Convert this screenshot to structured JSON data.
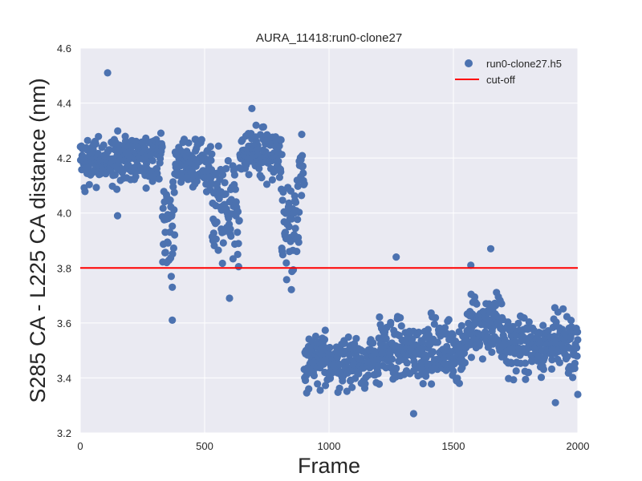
{
  "chart_data": {
    "type": "scatter",
    "title": "AURA_11418:run0-clone27",
    "xlabel": "Frame",
    "ylabel": "S285 CA - L225 CA distance (nm)",
    "xlim": [
      0,
      2000
    ],
    "ylim": [
      3.2,
      4.6
    ],
    "xticks": [
      "0",
      "500",
      "1000",
      "1500",
      "2000"
    ],
    "yticks": [
      "3.2",
      "3.4",
      "3.6",
      "3.8",
      "4.0",
      "4.2",
      "4.4",
      "4.6"
    ],
    "grid": true,
    "legend_position": "top-right",
    "series": [
      {
        "name": "run0-clone27.h5",
        "kind": "points",
        "color": "#4c72b0",
        "segments": [
          {
            "x_start": 0,
            "x_end": 330,
            "mean": 4.2,
            "spread": 0.1
          },
          {
            "x_start": 330,
            "x_end": 380,
            "mean": 3.95,
            "spread": 0.2
          },
          {
            "x_start": 380,
            "x_end": 530,
            "mean": 4.18,
            "spread": 0.1
          },
          {
            "x_start": 530,
            "x_end": 640,
            "mean": 4.0,
            "spread": 0.2
          },
          {
            "x_start": 640,
            "x_end": 810,
            "mean": 4.22,
            "spread": 0.1
          },
          {
            "x_start": 810,
            "x_end": 880,
            "mean": 3.95,
            "spread": 0.2
          },
          {
            "x_start": 880,
            "x_end": 900,
            "mean": 4.15,
            "spread": 0.15
          },
          {
            "x_start": 900,
            "x_end": 1200,
            "mean": 3.46,
            "spread": 0.1
          },
          {
            "x_start": 1200,
            "x_end": 1550,
            "mean": 3.5,
            "spread": 0.12
          },
          {
            "x_start": 1550,
            "x_end": 1700,
            "mean": 3.58,
            "spread": 0.12
          },
          {
            "x_start": 1700,
            "x_end": 2000,
            "mean": 3.52,
            "spread": 0.11
          }
        ],
        "highlights": [
          {
            "x": 110,
            "y": 4.51
          },
          {
            "x": 150,
            "y": 3.99
          },
          {
            "x": 370,
            "y": 3.61
          },
          {
            "x": 370,
            "y": 3.73
          },
          {
            "x": 600,
            "y": 3.69
          },
          {
            "x": 690,
            "y": 4.38
          },
          {
            "x": 1270,
            "y": 3.84
          },
          {
            "x": 1650,
            "y": 3.87
          },
          {
            "x": 1570,
            "y": 3.81
          },
          {
            "x": 1910,
            "y": 3.31
          },
          {
            "x": 1340,
            "y": 3.27
          },
          {
            "x": 2000,
            "y": 3.34
          }
        ]
      },
      {
        "name": "cut-off",
        "kind": "hline",
        "y": 3.8,
        "color": "#ff0000"
      }
    ]
  }
}
